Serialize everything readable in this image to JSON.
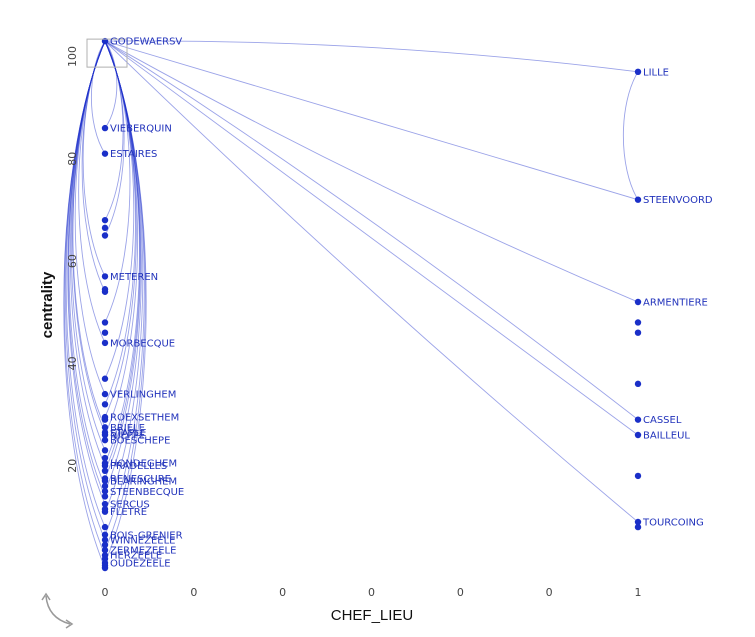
{
  "chart_data": {
    "type": "scatter",
    "xlabel": "CHEF_LIEU",
    "ylabel": "centrality",
    "x_ticks": [
      "0",
      "0",
      "0",
      "0",
      "0",
      "0",
      "1"
    ],
    "y_ticks": [
      20,
      40,
      60,
      80,
      100
    ],
    "ylim": [
      0,
      104
    ],
    "grid": false,
    "nodes": [
      {
        "label": "GODEWAERSV",
        "x": 0,
        "y": 103,
        "boxed": true
      },
      {
        "label": "VIEBERQUIN",
        "x": 0,
        "y": 86
      },
      {
        "label": "ESTAIRES",
        "x": 0,
        "y": 81
      },
      {
        "label": "",
        "x": 0,
        "y": 68
      },
      {
        "label": "",
        "x": 0,
        "y": 66.5
      },
      {
        "label": "",
        "x": 0,
        "y": 65
      },
      {
        "label": "METEREN",
        "x": 0,
        "y": 57
      },
      {
        "label": "",
        "x": 0,
        "y": 54.5
      },
      {
        "label": "",
        "x": 0,
        "y": 54
      },
      {
        "label": "",
        "x": 0,
        "y": 48
      },
      {
        "label": "",
        "x": 0,
        "y": 46
      },
      {
        "label": "MORBECQUE",
        "x": 0,
        "y": 44
      },
      {
        "label": "",
        "x": 0,
        "y": 37
      },
      {
        "label": "VERLINGHEM",
        "x": 0,
        "y": 34
      },
      {
        "label": "",
        "x": 0,
        "y": 32
      },
      {
        "label": "ROEXSETHEM",
        "x": 0,
        "y": 29.5
      },
      {
        "label": "",
        "x": 0,
        "y": 29
      },
      {
        "label": "BRIELE",
        "x": 0,
        "y": 27.5
      },
      {
        "label": "STAPLE",
        "x": 0,
        "y": 26.5
      },
      {
        "label": "NIEPPE",
        "x": 0,
        "y": 26
      },
      {
        "label": "BOESCHEPE",
        "x": 0,
        "y": 25
      },
      {
        "label": "",
        "x": 0,
        "y": 23
      },
      {
        "label": "",
        "x": 0,
        "y": 21.5
      },
      {
        "label": "HONDEGHEM",
        "x": 0,
        "y": 20.5
      },
      {
        "label": "PRADELLES",
        "x": 0,
        "y": 20
      },
      {
        "label": "",
        "x": 0,
        "y": 19
      },
      {
        "label": "RENESCURE",
        "x": 0,
        "y": 17.5
      },
      {
        "label": "BLARINGHEM",
        "x": 0,
        "y": 17
      },
      {
        "label": "",
        "x": 0,
        "y": 16
      },
      {
        "label": "STEENBECQUE",
        "x": 0,
        "y": 15
      },
      {
        "label": "",
        "x": 0,
        "y": 14
      },
      {
        "label": "SERCUS",
        "x": 0,
        "y": 12.5
      },
      {
        "label": "",
        "x": 0,
        "y": 11.5
      },
      {
        "label": "FLETRE",
        "x": 0,
        "y": 11
      },
      {
        "label": "",
        "x": 0,
        "y": 8
      },
      {
        "label": "BOIS-GRENIER",
        "x": 0,
        "y": 6.5
      },
      {
        "label": "WINNEZEELE",
        "x": 0,
        "y": 5.5
      },
      {
        "label": "",
        "x": 0,
        "y": 4.5
      },
      {
        "label": "ZERMEZEELE",
        "x": 0,
        "y": 3.5
      },
      {
        "label": "HERZEELE",
        "x": 0,
        "y": 2.5
      },
      {
        "label": "",
        "x": 0,
        "y": 1.8
      },
      {
        "label": "OUDEZEELE",
        "x": 0,
        "y": 1
      },
      {
        "label": "",
        "x": 0,
        "y": 0.5
      },
      {
        "label": "",
        "x": 0,
        "y": 0
      },
      {
        "label": "LILLE",
        "x": 1,
        "y": 97
      },
      {
        "label": "STEENVOORD",
        "x": 1,
        "y": 72
      },
      {
        "label": "ARMENTIERE",
        "x": 1,
        "y": 52
      },
      {
        "label": "",
        "x": 1,
        "y": 48
      },
      {
        "label": "",
        "x": 1,
        "y": 46
      },
      {
        "label": "",
        "x": 1,
        "y": 36
      },
      {
        "label": "CASSEL",
        "x": 1,
        "y": 29
      },
      {
        "label": "BAILLEUL",
        "x": 1,
        "y": 26
      },
      {
        "label": "",
        "x": 1,
        "y": 18
      },
      {
        "label": "TOURCOING",
        "x": 1,
        "y": 9
      },
      {
        "label": "",
        "x": 1,
        "y": 8
      }
    ],
    "edges": [
      [
        0,
        44
      ],
      [
        0,
        45
      ],
      [
        0,
        46
      ],
      [
        0,
        50
      ],
      [
        0,
        51
      ],
      [
        0,
        53
      ],
      [
        45,
        44
      ],
      [
        0,
        1
      ],
      [
        0,
        2
      ],
      [
        0,
        3
      ],
      [
        0,
        6
      ],
      [
        0,
        9
      ],
      [
        0,
        11
      ],
      [
        0,
        12
      ],
      [
        0,
        13
      ],
      [
        0,
        15
      ],
      [
        0,
        17
      ],
      [
        0,
        19
      ],
      [
        0,
        21
      ],
      [
        0,
        23
      ],
      [
        0,
        24
      ],
      [
        0,
        26
      ],
      [
        0,
        28
      ],
      [
        0,
        29
      ],
      [
        0,
        31
      ],
      [
        0,
        33
      ],
      [
        0,
        34
      ],
      [
        0,
        35
      ],
      [
        0,
        36
      ],
      [
        0,
        38
      ],
      [
        0,
        39
      ],
      [
        0,
        41
      ],
      [
        0,
        43
      ],
      [
        0,
        5
      ],
      [
        0,
        8
      ],
      [
        0,
        14
      ],
      [
        0,
        18
      ],
      [
        0,
        25
      ],
      [
        0,
        30
      ]
    ],
    "colors": {
      "node": "#1a2fc8",
      "edge": "#2233cc",
      "label": "#2233bb",
      "box": "#b0b0b0"
    }
  },
  "icons": {
    "rotate": "rotate-arrows-icon"
  }
}
